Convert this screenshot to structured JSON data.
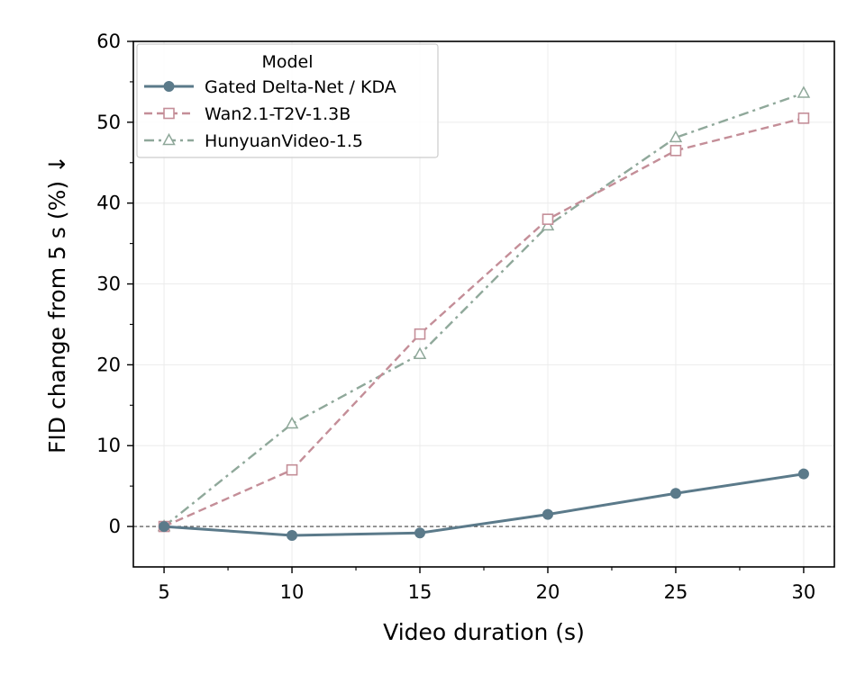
{
  "chart_data": {
    "type": "line",
    "xlabel": "Video duration (s)",
    "ylabel": "FID change from 5 s (%) ↓",
    "x": [
      5,
      10,
      15,
      20,
      25,
      30
    ],
    "xlim": [
      3.8,
      31.2
    ],
    "ylim": [
      -5,
      60
    ],
    "xticks": [
      5,
      10,
      15,
      20,
      25,
      30
    ],
    "yticks": [
      0,
      10,
      20,
      30,
      40,
      50,
      60
    ],
    "grid": true,
    "reference_line": 0,
    "legend": {
      "title": "Model",
      "position": "top-left"
    },
    "series": [
      {
        "name": "Gated Delta-Net / KDA",
        "values": [
          0,
          -1.1,
          -0.8,
          1.5,
          4.1,
          6.5
        ],
        "color": "#5b7a8a",
        "marker": "circle",
        "line": "solid"
      },
      {
        "name": "Wan2.1-T2V-1.3B",
        "values": [
          0,
          7.0,
          23.8,
          38.0,
          46.5,
          50.5
        ],
        "color": "#c48e98",
        "marker": "square",
        "line": "dashed"
      },
      {
        "name": "HunyuanVideo-1.5",
        "values": [
          0,
          12.7,
          21.3,
          37.2,
          48.1,
          53.6
        ],
        "color": "#8fa89a",
        "marker": "triangle",
        "line": "dashdot"
      }
    ]
  }
}
